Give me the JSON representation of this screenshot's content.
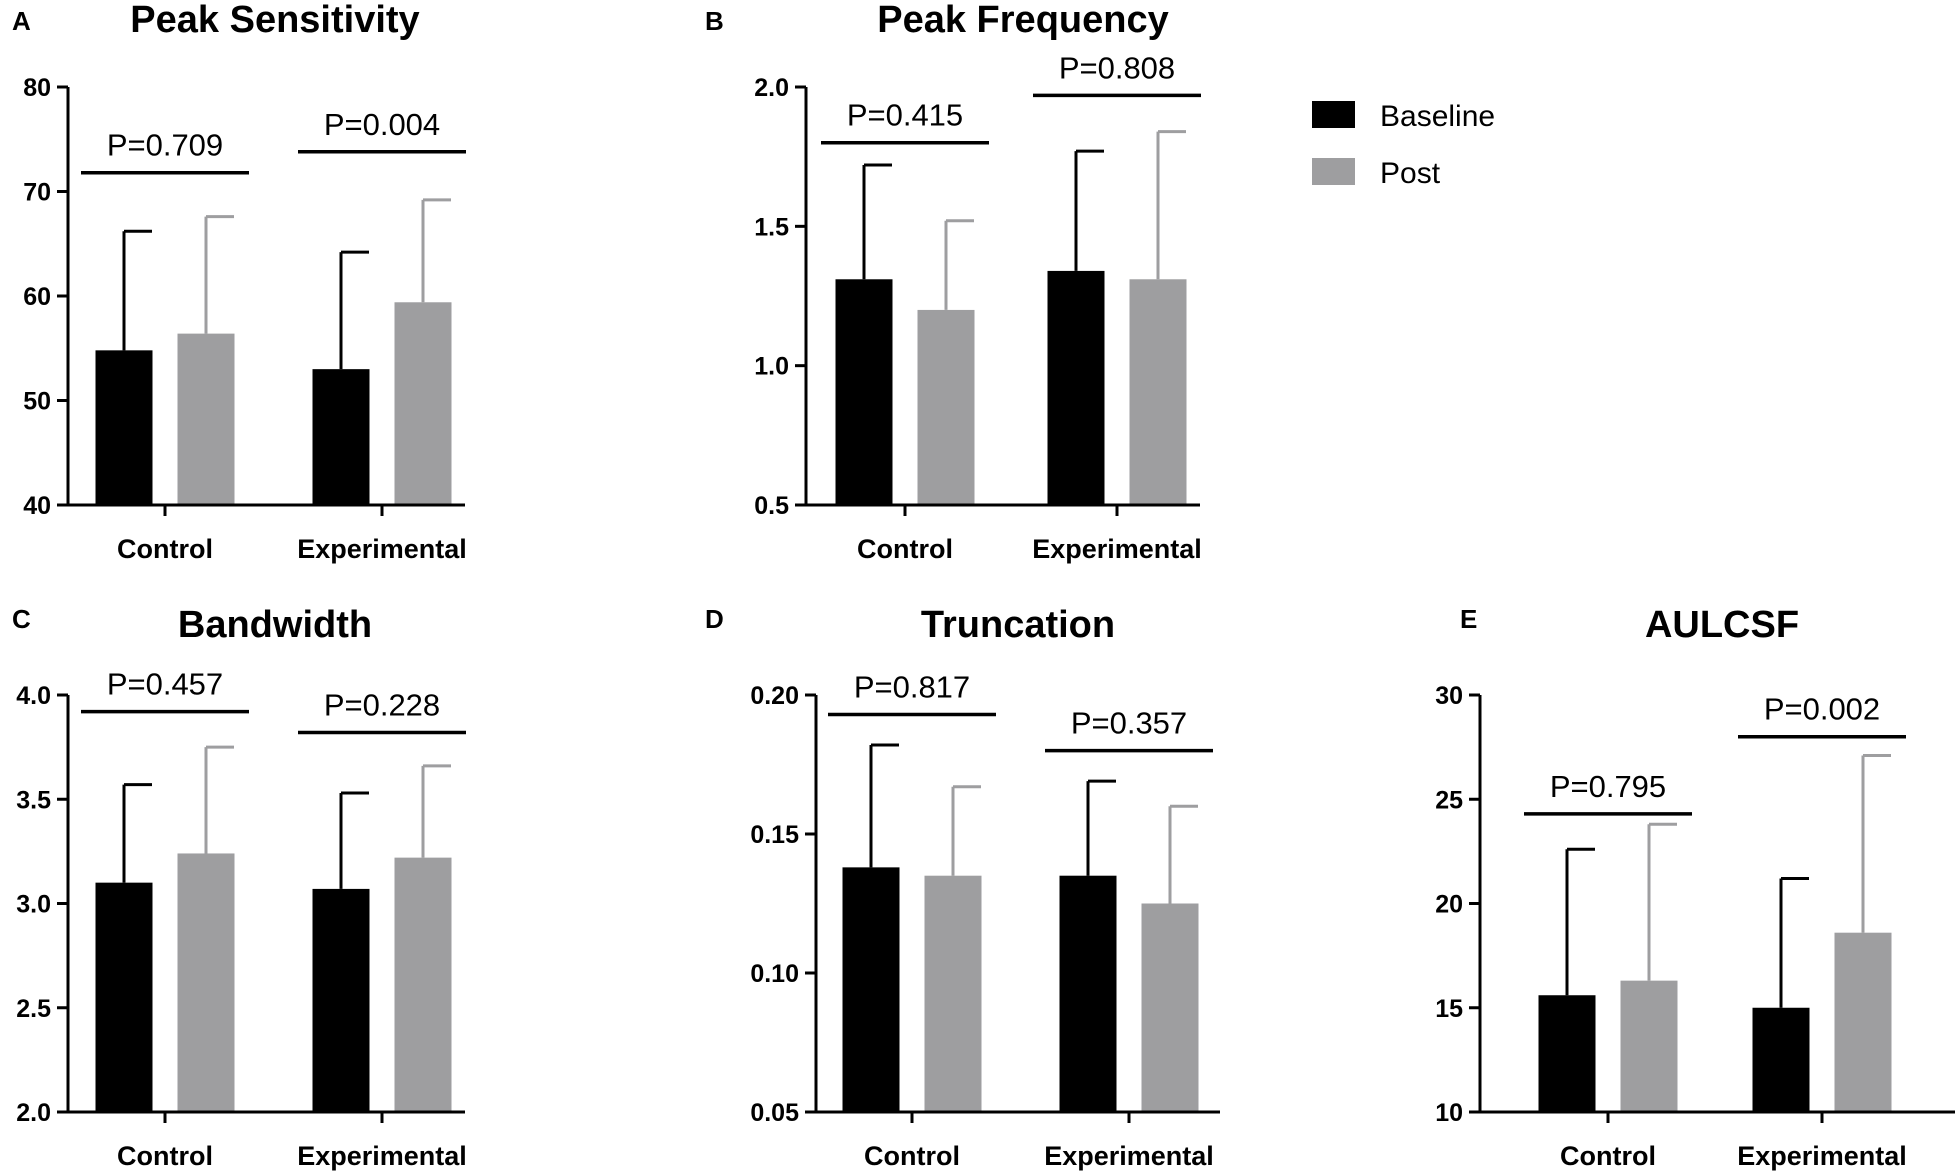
{
  "colors": {
    "baseline": "#000000",
    "post": "#9e9ea0"
  },
  "legend": [
    {
      "name": "Baseline",
      "color": "#000000"
    },
    {
      "name": "Post",
      "color": "#9e9ea0"
    }
  ],
  "chart_data": [
    {
      "panel": "A",
      "title": "Peak Sensitivity",
      "type": "bar",
      "categories": [
        "Control",
        "Experimental"
      ],
      "ylim": [
        40,
        80
      ],
      "yticks": [
        "40",
        "50",
        "60",
        "70",
        "80"
      ],
      "series": [
        {
          "name": "Baseline",
          "values": [
            54.8,
            53.0
          ],
          "error_upper": [
            66.2,
            64.2
          ]
        },
        {
          "name": "Post",
          "values": [
            56.4,
            59.4
          ],
          "error_upper": [
            67.6,
            69.2
          ]
        }
      ],
      "pvalues": [
        {
          "label": "P=0.709",
          "y": 71.8
        },
        {
          "label": "P=0.004",
          "y": 73.8
        }
      ]
    },
    {
      "panel": "B",
      "title": "Peak Frequency",
      "type": "bar",
      "categories": [
        "Control",
        "Experimental"
      ],
      "ylim": [
        0.5,
        2.0
      ],
      "yticks": [
        "0.5",
        "1.0",
        "1.5",
        "2.0"
      ],
      "series": [
        {
          "name": "Baseline",
          "values": [
            1.31,
            1.34
          ],
          "error_upper": [
            1.72,
            1.77
          ]
        },
        {
          "name": "Post",
          "values": [
            1.2,
            1.31
          ],
          "error_upper": [
            1.52,
            1.84
          ]
        }
      ],
      "pvalues": [
        {
          "label": "P=0.415",
          "y": 1.8
        },
        {
          "label": "P=0.808",
          "y": 1.97
        }
      ]
    },
    {
      "panel": "C",
      "title": "Bandwidth",
      "type": "bar",
      "categories": [
        "Control",
        "Experimental"
      ],
      "ylim": [
        2.0,
        4.0
      ],
      "yticks": [
        "2.0",
        "2.5",
        "3.0",
        "3.5",
        "4.0"
      ],
      "series": [
        {
          "name": "Baseline",
          "values": [
            3.1,
            3.07
          ],
          "error_upper": [
            3.57,
            3.53
          ]
        },
        {
          "name": "Post",
          "values": [
            3.24,
            3.22
          ],
          "error_upper": [
            3.75,
            3.66
          ]
        }
      ],
      "pvalues": [
        {
          "label": "P=0.457",
          "y": 3.92
        },
        {
          "label": "P=0.228",
          "y": 3.82
        }
      ]
    },
    {
      "panel": "D",
      "title": "Truncation",
      "type": "bar",
      "categories": [
        "Control",
        "Experimental"
      ],
      "ylim": [
        0.05,
        0.2
      ],
      "yticks": [
        "0.05",
        "0.10",
        "0.15",
        "0.20"
      ],
      "series": [
        {
          "name": "Baseline",
          "values": [
            0.138,
            0.135
          ],
          "error_upper": [
            0.182,
            0.169
          ]
        },
        {
          "name": "Post",
          "values": [
            0.135,
            0.125
          ],
          "error_upper": [
            0.167,
            0.16
          ]
        }
      ],
      "pvalues": [
        {
          "label": "P=0.817",
          "y": 0.193
        },
        {
          "label": "P=0.357",
          "y": 0.18
        }
      ]
    },
    {
      "panel": "E",
      "title": "AULCSF",
      "type": "bar",
      "categories": [
        "Control",
        "Experimental"
      ],
      "ylim": [
        10,
        30
      ],
      "yticks": [
        "10",
        "15",
        "20",
        "25",
        "30"
      ],
      "series": [
        {
          "name": "Baseline",
          "values": [
            15.6,
            15.0
          ],
          "error_upper": [
            22.6,
            21.2
          ]
        },
        {
          "name": "Post",
          "values": [
            16.3,
            18.6
          ],
          "error_upper": [
            23.8,
            27.1
          ]
        }
      ],
      "pvalues": [
        {
          "label": "P=0.795",
          "y": 24.3
        },
        {
          "label": "P=0.002",
          "y": 28.0
        }
      ]
    }
  ]
}
